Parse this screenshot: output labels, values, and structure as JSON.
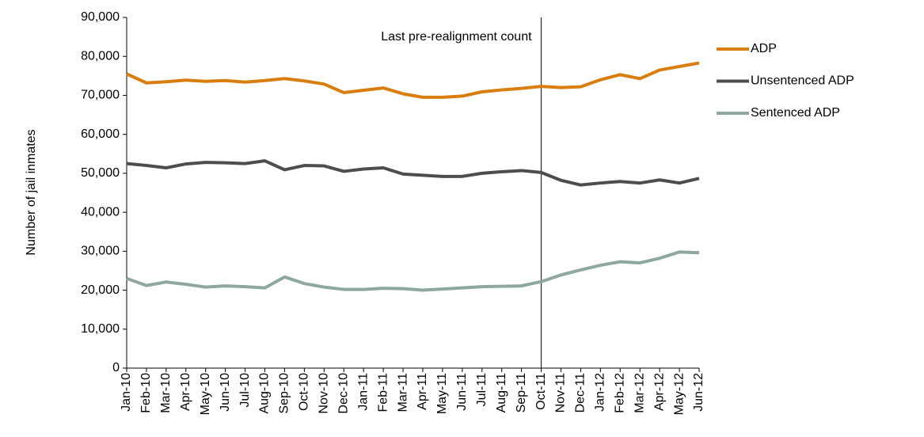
{
  "chart_data": {
    "type": "line",
    "y_label": "Number of jail inmates",
    "annotation": {
      "text": "Last pre-realignment count",
      "x": "Oct-11"
    },
    "categories": [
      "Jan-10",
      "Feb-10",
      "Mar-10",
      "Apr-10",
      "May-10",
      "Jun-10",
      "Jul-10",
      "Aug-10",
      "Sep-10",
      "Oct-10",
      "Nov-10",
      "Dec-10",
      "Jan-11",
      "Feb-11",
      "Mar-11",
      "Apr-11",
      "May-11",
      "Jun-11",
      "Jul-11",
      "Aug-11",
      "Sep-11",
      "Oct-11",
      "Nov-11",
      "Dec-11",
      "Jan-12",
      "Feb-12",
      "Mar-12",
      "Apr-12",
      "May-12",
      "Jun-12"
    ],
    "series": [
      {
        "name": "ADP",
        "color": "#d97d0f",
        "values": [
          75500,
          73200,
          73500,
          73900,
          73600,
          73800,
          73400,
          73800,
          74300,
          73700,
          72900,
          70700,
          71300,
          71900,
          70400,
          69500,
          69500,
          69800,
          70900,
          71400,
          71800,
          72300,
          72000,
          72200,
          74000,
          75300,
          74300,
          76500,
          77400,
          78300
        ]
      },
      {
        "name": "Unsentenced ADP",
        "color": "#4d4d4f",
        "values": [
          52500,
          52000,
          51400,
          52400,
          52800,
          52700,
          52500,
          53200,
          50900,
          52000,
          51900,
          50500,
          51100,
          51400,
          49800,
          49500,
          49200,
          49200,
          50000,
          50400,
          50700,
          50200,
          48200,
          47000,
          47500,
          47900,
          47500,
          48300,
          47500,
          48700
        ]
      },
      {
        "name": "Sentenced ADP",
        "color": "#8fa89d",
        "values": [
          23000,
          21200,
          22100,
          21500,
          20800,
          21100,
          20900,
          20600,
          23400,
          21700,
          20800,
          20200,
          20200,
          20500,
          20400,
          20000,
          20300,
          20600,
          20900,
          21000,
          21100,
          22200,
          23900,
          25200,
          26400,
          27300,
          27000,
          28200,
          29800,
          29600
        ]
      }
    ],
    "ylim": [
      0,
      90000
    ],
    "yticks": [
      0,
      {
        "value": 10000,
        "label": "10,000"
      },
      {
        "value": 20000,
        "label": "20,000"
      },
      {
        "value": 30000,
        "label": "30,000"
      },
      {
        "value": 40000,
        "label": "40,000"
      },
      {
        "value": 50000,
        "label": "50,000"
      },
      {
        "value": 60000,
        "label": "60,000"
      },
      {
        "value": 70000,
        "label": "70,000"
      },
      {
        "value": 80000,
        "label": "80,000"
      },
      {
        "value": 90000,
        "label": "90,000"
      }
    ],
    "legend": "right",
    "grid": false
  }
}
